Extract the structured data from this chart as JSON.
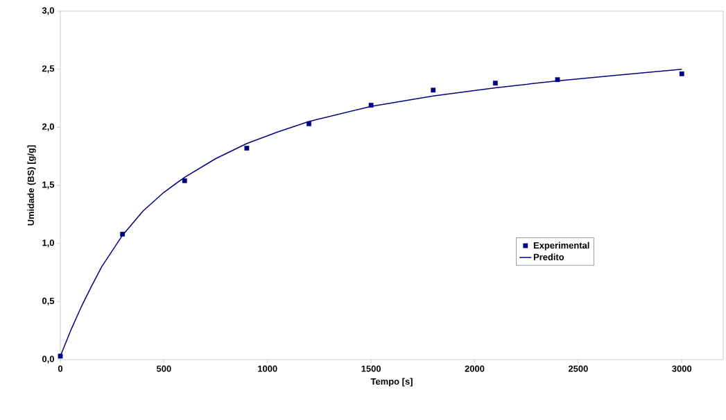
{
  "chart_data": {
    "type": "scatter",
    "xlabel": "Tempo [s]",
    "ylabel": "Umidade (BS) [g/g]",
    "xlim": [
      0,
      3200
    ],
    "ylim": [
      0,
      3.0
    ],
    "xticks": [
      0,
      500,
      1000,
      1500,
      2000,
      2500,
      3000
    ],
    "yticks": [
      {
        "value": 0,
        "label": "0,0"
      },
      {
        "value": 0.5,
        "label": "0,5"
      },
      {
        "value": 1.0,
        "label": "1,0"
      },
      {
        "value": 1.5,
        "label": "1,5"
      },
      {
        "value": 2.0,
        "label": "2,0"
      },
      {
        "value": 2.5,
        "label": "2,5"
      },
      {
        "value": 3.0,
        "label": "3,0"
      }
    ],
    "grid": false,
    "legend": "bottom right",
    "series": [
      {
        "name": "Experimental",
        "marker": "square",
        "color": "#000080",
        "x": [
          0,
          300,
          600,
          900,
          1200,
          1500,
          1800,
          2100,
          2400,
          3000
        ],
        "values": [
          0.03,
          1.08,
          1.54,
          1.82,
          2.03,
          2.19,
          2.32,
          2.38,
          2.41,
          2.46
        ]
      },
      {
        "name": "Predito",
        "type": "line",
        "marker": "none",
        "line_style": "solid",
        "color": "#000080",
        "x": [
          0,
          50,
          100,
          150,
          200,
          300,
          400,
          500,
          600,
          750,
          900,
          1050,
          1200,
          1500,
          1800,
          2100,
          2400,
          2700,
          3000
        ],
        "values": [
          0.03,
          0.25,
          0.45,
          0.63,
          0.8,
          1.07,
          1.28,
          1.44,
          1.57,
          1.73,
          1.86,
          1.96,
          2.05,
          2.18,
          2.27,
          2.34,
          2.4,
          2.45,
          2.5
        ]
      }
    ]
  }
}
